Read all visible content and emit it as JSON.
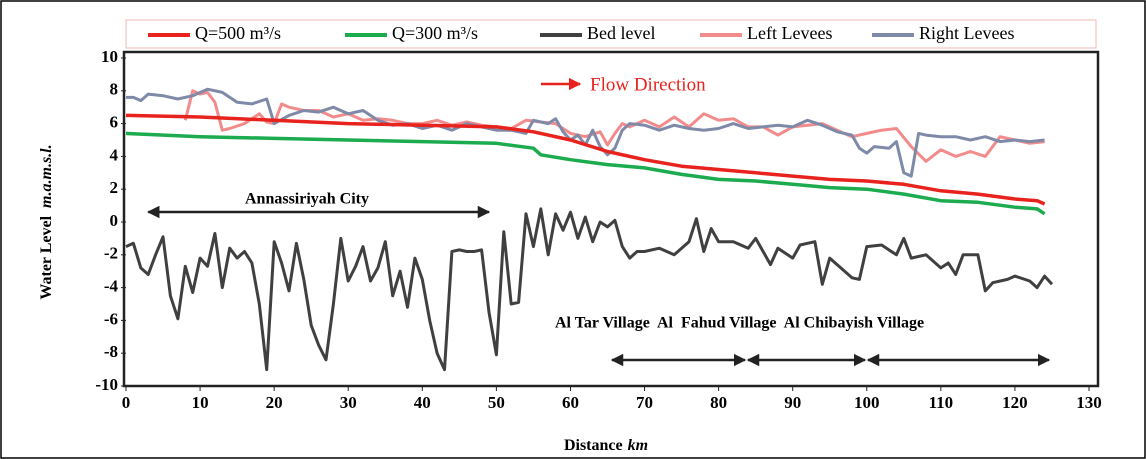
{
  "chart_data": {
    "type": "line",
    "xlabel": "Distance",
    "xlabel_unit": "km",
    "ylabel": "Water Level",
    "ylabel_unit": "m.a.m.s.l.",
    "xlim": [
      0,
      130
    ],
    "xticks": [
      0,
      10,
      20,
      30,
      40,
      50,
      60,
      70,
      80,
      90,
      100,
      110,
      120,
      130
    ],
    "ylim": [
      -10,
      10
    ],
    "yticks": [
      -10,
      -8,
      -6,
      -4,
      -2,
      0,
      2,
      4,
      6,
      8,
      10
    ],
    "grid": false,
    "legend": "top",
    "annotations": [
      "Flow Direction",
      "Annassiriyah City",
      "Al Tar Village  Al  Fahud Village  Al Chibayish Village"
    ],
    "series": [
      {
        "name": "Q=500 m³/s",
        "color": "#e8231e",
        "x": [
          0,
          10,
          20,
          30,
          40,
          50,
          55,
          60,
          65,
          70,
          75,
          80,
          85,
          90,
          95,
          100,
          105,
          110,
          115,
          120,
          123,
          124
        ],
        "values": [
          6.5,
          6.4,
          6.2,
          6.0,
          5.9,
          5.8,
          5.5,
          5.0,
          4.3,
          3.8,
          3.4,
          3.2,
          3.0,
          2.8,
          2.6,
          2.5,
          2.3,
          1.9,
          1.7,
          1.4,
          1.3,
          1.1
        ]
      },
      {
        "name": "Q=300 m³/s",
        "color": "#1cab4f",
        "x": [
          0,
          10,
          20,
          30,
          40,
          50,
          55,
          56,
          60,
          65,
          70,
          75,
          80,
          85,
          90,
          95,
          100,
          105,
          110,
          115,
          120,
          123,
          124
        ],
        "values": [
          5.4,
          5.2,
          5.1,
          5.0,
          4.9,
          4.8,
          4.5,
          4.1,
          3.8,
          3.5,
          3.3,
          2.9,
          2.6,
          2.5,
          2.3,
          2.1,
          2.0,
          1.7,
          1.3,
          1.2,
          0.9,
          0.8,
          0.5
        ]
      },
      {
        "name": "Bed level",
        "color": "#404040",
        "x": [
          0,
          1,
          2,
          3,
          4,
          5,
          6,
          7,
          8,
          9,
          10,
          11,
          12,
          13,
          14,
          15,
          16,
          17,
          18,
          19,
          20,
          21,
          22,
          23,
          24,
          25,
          26,
          27,
          28,
          29,
          30,
          31,
          32,
          33,
          34,
          35,
          36,
          37,
          38,
          39,
          40,
          41,
          42,
          43,
          44,
          45,
          46,
          47,
          48,
          49,
          50,
          51,
          52,
          53,
          54,
          55,
          56,
          57,
          58,
          59,
          60,
          61,
          62,
          63,
          64,
          65,
          66,
          67,
          68,
          69,
          70,
          72,
          74,
          76,
          77,
          78,
          79,
          80,
          82,
          84,
          85,
          87,
          88,
          90,
          91,
          93,
          94,
          95,
          98,
          99,
          100,
          102,
          104,
          105,
          106,
          108,
          110,
          111,
          112,
          113,
          115,
          116,
          117,
          119,
          120,
          122,
          123,
          124,
          125
        ],
        "values": [
          -1.5,
          -1.3,
          -2.8,
          -3.2,
          -2.0,
          -0.9,
          -4.5,
          -5.9,
          -2.7,
          -4.3,
          -2.2,
          -2.7,
          -0.7,
          -4.0,
          -1.6,
          -2.2,
          -1.8,
          -2.5,
          -5.0,
          -9.0,
          -1.2,
          -2.5,
          -4.2,
          -1.3,
          -3.5,
          -6.3,
          -7.5,
          -8.4,
          -5.0,
          -1.0,
          -3.6,
          -2.7,
          -1.5,
          -3.6,
          -2.8,
          -1.2,
          -4.5,
          -3.0,
          -5.2,
          -2.2,
          -3.5,
          -6.0,
          -8.0,
          -9.0,
          -1.8,
          -1.7,
          -1.8,
          -1.8,
          -1.7,
          -5.5,
          -8.1,
          -0.6,
          -5.0,
          -4.9,
          0.5,
          -1.5,
          0.8,
          -2.0,
          0.5,
          -0.5,
          0.6,
          -1.0,
          0.3,
          -1.2,
          0.0,
          -0.3,
          0.1,
          -1.5,
          -2.2,
          -1.8,
          -1.8,
          -1.6,
          -2.0,
          -1.2,
          0.2,
          -1.8,
          -0.4,
          -1.2,
          -1.2,
          -1.6,
          -1.0,
          -2.6,
          -1.6,
          -2.2,
          -1.4,
          -1.2,
          -3.8,
          -2.2,
          -3.4,
          -3.5,
          -1.5,
          -1.4,
          -2.0,
          -1.0,
          -2.2,
          -2.0,
          -2.8,
          -2.5,
          -3.2,
          -2.0,
          -2.0,
          -4.2,
          -3.7,
          -3.5,
          -3.3,
          -3.6,
          -4.0,
          -3.3,
          -3.8
        ]
      },
      {
        "name": "Left Levees",
        "color": "#f28b8b",
        "x": [
          8,
          9,
          10,
          11,
          12,
          13,
          14,
          16,
          18,
          19,
          20,
          21,
          22,
          24,
          26,
          28,
          30,
          32,
          34,
          36,
          38,
          40,
          42,
          44,
          46,
          48,
          50,
          52,
          54,
          56,
          58,
          60,
          62,
          64,
          65,
          66,
          67,
          68,
          70,
          72,
          74,
          76,
          78,
          80,
          82,
          84,
          86,
          88,
          90,
          92,
          94,
          96,
          98,
          100,
          102,
          104,
          106,
          108,
          110,
          112,
          114,
          116,
          118,
          120,
          122,
          124
        ],
        "values": [
          6.2,
          8.0,
          7.8,
          7.9,
          7.3,
          5.6,
          5.7,
          6.0,
          6.6,
          6.1,
          6.0,
          7.2,
          7.0,
          6.8,
          6.8,
          6.4,
          6.6,
          6.2,
          6.3,
          6.2,
          6.0,
          6.0,
          6.2,
          5.9,
          6.1,
          5.9,
          5.8,
          5.7,
          6.2,
          6.1,
          6.0,
          5.4,
          5.2,
          5.5,
          4.7,
          5.4,
          6.0,
          5.8,
          6.2,
          5.8,
          6.4,
          5.8,
          6.6,
          6.2,
          6.3,
          5.8,
          5.8,
          5.3,
          5.8,
          5.9,
          6.0,
          5.6,
          5.2,
          5.4,
          5.6,
          5.7,
          4.6,
          3.7,
          4.4,
          4.0,
          4.3,
          4.0,
          5.2,
          5.0,
          4.8,
          4.9
        ]
      },
      {
        "name": "Right Levees",
        "color": "#7f8aa8",
        "x": [
          0,
          1,
          2,
          3,
          5,
          7,
          9,
          11,
          13,
          15,
          17,
          19,
          20,
          22,
          24,
          26,
          28,
          30,
          32,
          34,
          36,
          38,
          40,
          42,
          44,
          46,
          48,
          50,
          52,
          54,
          55,
          57,
          58,
          59,
          60,
          61,
          62,
          63,
          64,
          65,
          66,
          67,
          68,
          70,
          72,
          74,
          76,
          78,
          80,
          82,
          84,
          86,
          88,
          90,
          92,
          94,
          96,
          98,
          99,
          100,
          101,
          103,
          104,
          105,
          106,
          107,
          108,
          110,
          112,
          114,
          116,
          118,
          120,
          122,
          124
        ],
        "values": [
          7.6,
          7.6,
          7.4,
          7.8,
          7.7,
          7.5,
          7.7,
          8.1,
          7.9,
          7.3,
          7.2,
          7.5,
          6.0,
          6.5,
          6.8,
          6.7,
          7.0,
          6.6,
          6.8,
          6.2,
          5.9,
          6.0,
          5.7,
          5.9,
          5.6,
          6.0,
          5.8,
          5.6,
          5.6,
          5.4,
          6.2,
          6.0,
          6.3,
          5.5,
          5.0,
          5.3,
          4.7,
          5.6,
          4.6,
          4.1,
          4.5,
          5.6,
          6.0,
          5.9,
          5.6,
          5.9,
          5.7,
          5.6,
          5.7,
          6.0,
          5.7,
          5.8,
          5.9,
          5.8,
          6.2,
          5.9,
          5.5,
          5.3,
          4.5,
          4.2,
          4.6,
          4.5,
          4.9,
          3.0,
          2.8,
          5.4,
          5.3,
          5.2,
          5.2,
          5.0,
          5.2,
          4.9,
          5.0,
          4.9,
          5.0
        ]
      }
    ]
  }
}
